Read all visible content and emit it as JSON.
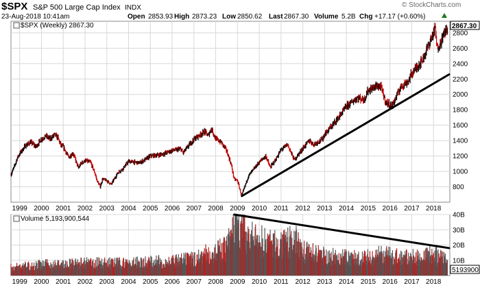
{
  "header": {
    "symbol": "$SPX",
    "name": "S&P 500 Large Cap Index",
    "exchange": "INDX",
    "date": "23-Aug-2018 10:41am",
    "open_label": "Open",
    "open": "2853.93",
    "high_label": "High",
    "high": "2873.23",
    "low_label": "Low",
    "low": "2850.62",
    "last_label": "Last",
    "last": "2867.30",
    "volume_label": "Volume",
    "volume": "5.2B",
    "chg_label": "Chg",
    "chg": "+17.17 (+0.60%)",
    "watermark": "© StockCharts.com"
  },
  "colors": {
    "up": "#000000",
    "down": "#cc0000",
    "vol_up": "#555555",
    "vol_down": "#b22222",
    "trend": "#000000",
    "grid": "#d8d8d8"
  },
  "chart_data": [
    {
      "type": "line",
      "legend": "$SPX (Weekly) 2867.30",
      "last_value_label": "2867.30",
      "x_ticks": [
        "1999",
        "2000",
        "2001",
        "2002",
        "2003",
        "2004",
        "2005",
        "2006",
        "2007",
        "2008",
        "2009",
        "2010",
        "2011",
        "2012",
        "2013",
        "2014",
        "2015",
        "2016",
        "2017",
        "2018"
      ],
      "x_range": [
        1998.6,
        2018.75
      ],
      "y_ticks": [
        800,
        1000,
        1200,
        1400,
        1600,
        1800,
        2000,
        2200,
        2400,
        2600,
        2800
      ],
      "ylim": [
        600,
        2950
      ],
      "grid": true,
      "series": [
        {
          "x": [
            1998.6,
            1998.75,
            1998.9,
            1999.0,
            1999.25,
            1999.5,
            1999.75,
            2000.0,
            2000.2,
            2000.4,
            2000.6,
            2000.75,
            2000.9,
            2001.0,
            2001.25,
            2001.45,
            2001.7,
            2001.8,
            2002.0,
            2002.25,
            2002.45,
            2002.55,
            2002.7,
            2002.8,
            2003.0,
            2003.2,
            2003.5,
            2003.75,
            2004.0,
            2004.5,
            2004.75,
            2005.0,
            2005.5,
            2006.0,
            2006.4,
            2006.5,
            2007.0,
            2007.2,
            2007.5,
            2007.65,
            2007.8,
            2008.0,
            2008.25,
            2008.5,
            2008.7,
            2008.85,
            2009.0,
            2009.19,
            2009.5,
            2010.0,
            2010.3,
            2010.5,
            2010.75,
            2011.0,
            2011.3,
            2011.6,
            2011.75,
            2012.0,
            2012.3,
            2012.5,
            2012.9,
            2013.0,
            2013.5,
            2014.0,
            2014.5,
            2014.8,
            2015.0,
            2015.4,
            2015.6,
            2015.8,
            2016.1,
            2016.5,
            2016.85,
            2017.0,
            2017.5,
            2018.0,
            2018.08,
            2018.15,
            2018.3,
            2018.5,
            2018.64
          ],
          "values": [
            960,
            1060,
            1180,
            1230,
            1330,
            1380,
            1320,
            1420,
            1460,
            1420,
            1480,
            1440,
            1330,
            1320,
            1180,
            1240,
            1040,
            1100,
            1140,
            1120,
            980,
            880,
            800,
            900,
            880,
            830,
            980,
            1040,
            1130,
            1110,
            1150,
            1200,
            1220,
            1270,
            1290,
            1240,
            1420,
            1460,
            1520,
            1460,
            1560,
            1420,
            1380,
            1270,
            1100,
            900,
            880,
            680,
            940,
            1120,
            1200,
            1050,
            1150,
            1280,
            1350,
            1150,
            1200,
            1300,
            1400,
            1350,
            1420,
            1480,
            1650,
            1840,
            1960,
            1930,
            2050,
            2110,
            2090,
            1900,
            1850,
            2100,
            2170,
            2270,
            2450,
            2800,
            2870,
            2610,
            2650,
            2800,
            2867
          ]
        }
      ],
      "trendline": {
        "x": [
          2009.2,
          2018.72
        ],
        "y": [
          680,
          2260
        ]
      }
    },
    {
      "type": "bar",
      "legend": "Volume 5,193,900,544",
      "last_value_label": "5193900",
      "y_ticks": [
        10,
        20,
        30,
        40
      ],
      "y_tick_labels": [
        "10B",
        "20B",
        "30B",
        "40B"
      ],
      "ylim": [
        0,
        40
      ],
      "grid": true,
      "series": [
        {
          "x": [
            1998.6,
            2000.0,
            2001.0,
            2002.0,
            2003.0,
            2004.0,
            2005.0,
            2006.0,
            2007.0,
            2007.5,
            2008.0,
            2008.5,
            2008.75,
            2008.9,
            2009.2,
            2009.5,
            2010.0,
            2010.4,
            2011.0,
            2011.6,
            2012.0,
            2013.0,
            2014.0,
            2015.0,
            2015.6,
            2016.0,
            2017.0,
            2018.0,
            2018.64
          ],
          "values": [
            6,
            8,
            8,
            9,
            9,
            9,
            10,
            10,
            12,
            15,
            17,
            20,
            30,
            38,
            33,
            27,
            25,
            24,
            21,
            26,
            18,
            14,
            13,
            13,
            15,
            14,
            13,
            15,
            11
          ]
        }
      ],
      "trendline": {
        "x": [
          2008.85,
          2018.72
        ],
        "y": [
          40,
          18
        ]
      }
    }
  ]
}
